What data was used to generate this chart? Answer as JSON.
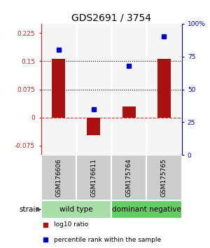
{
  "title": "GDS2691 / 3754",
  "samples": [
    "GSM176606",
    "GSM176611",
    "GSM175764",
    "GSM175765"
  ],
  "log10_ratio": [
    0.157,
    -0.047,
    0.03,
    0.157
  ],
  "percentile_rank": [
    80,
    35,
    68,
    90
  ],
  "groups": [
    {
      "label": "wild type",
      "samples": [
        0,
        1
      ],
      "color": "#aaddaa"
    },
    {
      "label": "dominant negative",
      "samples": [
        2,
        3
      ],
      "color": "#66cc66"
    }
  ],
  "bar_color": "#aa1111",
  "dot_color": "#0000cc",
  "ylim_left": [
    -0.1,
    0.25
  ],
  "ylim_right": [
    0,
    100
  ],
  "yticks_left": [
    -0.075,
    0,
    0.075,
    0.15,
    0.225
  ],
  "yticks_right": [
    0,
    25,
    50,
    75,
    100
  ],
  "ytick_labels_left": [
    "-0.075",
    "0",
    "0.075",
    "0.15",
    "0.225"
  ],
  "ytick_labels_right": [
    "0",
    "25",
    "50",
    "75",
    "100%"
  ],
  "hlines": [
    0.075,
    0.15
  ],
  "zero_line": 0,
  "legend_items": [
    {
      "color": "#aa1111",
      "label": "log10 ratio"
    },
    {
      "color": "#0000cc",
      "label": "percentile rank within the sample"
    }
  ],
  "sample_box_color": "#cccccc",
  "bg_color": "#ffffff"
}
